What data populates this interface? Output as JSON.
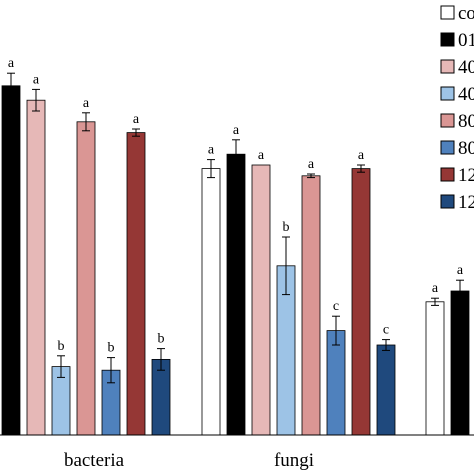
{
  "chart_data": {
    "type": "bar",
    "categories": [
      "bacteria",
      "fungi",
      ""
    ],
    "ylim": [
      0,
      100
    ],
    "grid": false,
    "legend_position": "top-right",
    "series": [
      {
        "name": "co",
        "color": "#ffffff",
        "values": [
          null,
          74,
          37
        ],
        "errors": [
          null,
          2.5,
          1
        ],
        "labels": [
          null,
          "a",
          "a"
        ]
      },
      {
        "name": "01",
        "color": "#000000",
        "values": [
          97,
          78,
          40
        ],
        "errors": [
          3.5,
          4,
          3
        ],
        "labels": [
          "a",
          "a",
          "a"
        ]
      },
      {
        "name": "40",
        "color": "#e6b8b7",
        "values": [
          93,
          75,
          null
        ],
        "errors": [
          3,
          0,
          null
        ],
        "labels": [
          "a",
          "a",
          null
        ]
      },
      {
        "name": "40",
        "color": "#9dc3e6",
        "values": [
          19,
          47,
          null
        ],
        "errors": [
          3,
          8,
          null
        ],
        "labels": [
          "b",
          "b",
          null
        ]
      },
      {
        "name": "80",
        "color": "#da9694",
        "values": [
          87,
          72,
          null
        ],
        "errors": [
          2.5,
          0.5,
          null
        ],
        "labels": [
          "a",
          "a",
          null
        ]
      },
      {
        "name": "80",
        "color": "#4f81bd",
        "values": [
          18,
          29,
          null
        ],
        "errors": [
          3.5,
          4,
          null
        ],
        "labels": [
          "b",
          "c",
          null
        ]
      },
      {
        "name": "12",
        "color": "#953735",
        "values": [
          84,
          74,
          null
        ],
        "errors": [
          1,
          1,
          null
        ],
        "labels": [
          "a",
          "a",
          null
        ]
      },
      {
        "name": "12",
        "color": "#1f497d",
        "values": [
          21,
          25,
          null
        ],
        "errors": [
          3,
          1.5,
          null
        ],
        "labels": [
          "b",
          "c",
          null
        ]
      }
    ]
  }
}
